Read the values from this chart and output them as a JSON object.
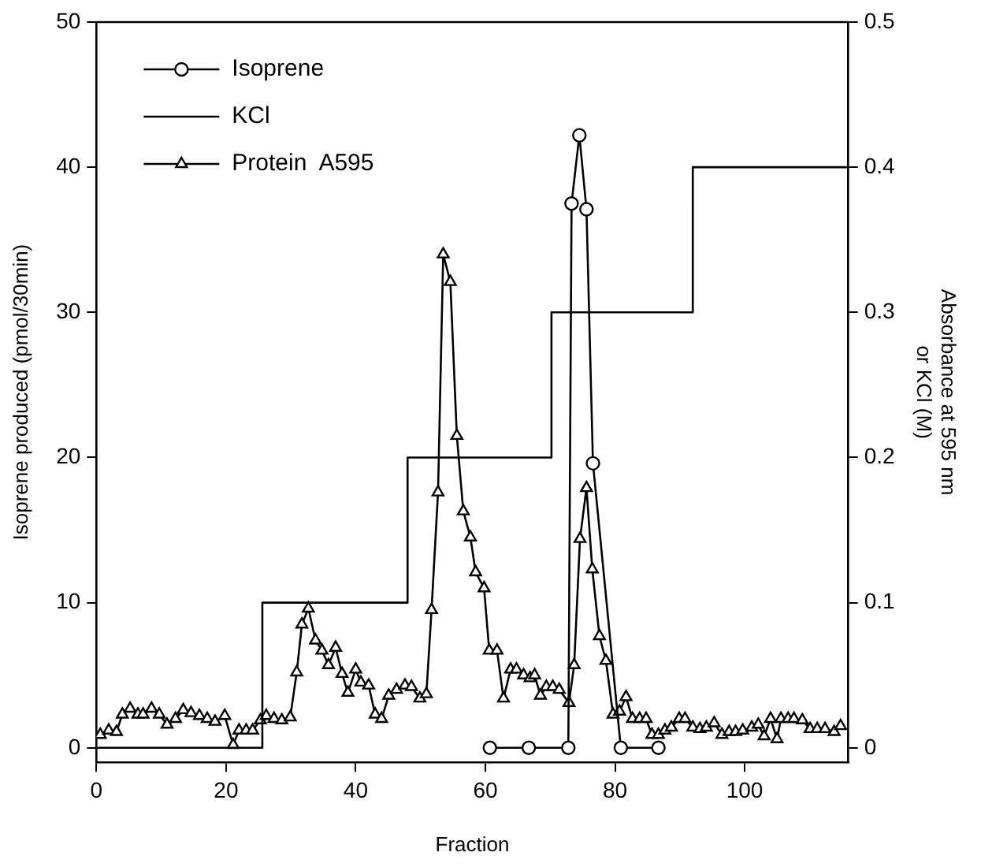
{
  "chart_data": {
    "type": "line",
    "xlabel": "Fraction",
    "ylabel": "Isoprene produced (pmol/30min)",
    "y2label": "Absorbance at 595 nm\nor KCl (M)",
    "xlim": [
      0,
      116
    ],
    "xticks": [
      0,
      20,
      40,
      60,
      80,
      100
    ],
    "ylim": [
      -1,
      50
    ],
    "yticks": [
      0,
      10,
      20,
      30,
      40,
      50
    ],
    "y2lim": [
      -0.01,
      0.5
    ],
    "y2ticks": [
      0,
      0.1,
      0.2,
      0.3,
      0.4,
      0.5
    ],
    "grid": false,
    "legend": "top left",
    "line_style": "solid",
    "series": [
      {
        "name": "Isoprene",
        "type": "line",
        "marker": "circle",
        "axis": "y",
        "color": "#000000",
        "x": [
          60.7,
          66.7,
          72.8,
          73.3,
          74.5,
          75.6,
          76.6,
          80.9,
          86.7
        ],
        "values": [
          0,
          0,
          0,
          37.5,
          42.2,
          37.1,
          19.6,
          0,
          0
        ]
      },
      {
        "name": "KCl",
        "type": "step",
        "marker": "none",
        "axis": "y2",
        "color": "#000000",
        "x": [
          0,
          25.6,
          48,
          70.2,
          92,
          116
        ],
        "values": [
          0,
          0.1,
          0.2,
          0.3,
          0.4,
          0.4
        ]
      },
      {
        "name": "Protein  A595",
        "type": "line",
        "marker": "triangle",
        "axis": "y2",
        "color": "#000000",
        "x": [
          0.6,
          1.9,
          3.1,
          4.0,
          5.2,
          6.4,
          7.2,
          8.5,
          9.7,
          10.9,
          12.2,
          13.4,
          14.6,
          15.9,
          17.1,
          18.3,
          19.8,
          21.1,
          22.0,
          23.1,
          24.1,
          25.3,
          26.2,
          27.4,
          28.6,
          29.9,
          30.9,
          31.7,
          32.7,
          33.8,
          34.8,
          35.8,
          36.9,
          37.9,
          38.8,
          40.0,
          40.8,
          42.0,
          43.0,
          44.0,
          45.1,
          46.3,
          47.6,
          48.6,
          49.9,
          50.9,
          51.7,
          52.7,
          53.5,
          54.6,
          55.6,
          56.6,
          57.7,
          58.5,
          59.8,
          60.6,
          61.8,
          62.8,
          63.9,
          64.8,
          65.9,
          66.9,
          67.6,
          68.5,
          69.4,
          70.4,
          71.4,
          72.9,
          73.7,
          74.6,
          75.6,
          76.5,
          77.6,
          78.6,
          79.7,
          80.7,
          81.7,
          82.7,
          83.8,
          84.8,
          85.7,
          86.7,
          87.7,
          88.7,
          89.9,
          90.8,
          92.0,
          93.1,
          94.1,
          95.3,
          96.5,
          97.6,
          98.6,
          99.7,
          101.1,
          102.1,
          103.0,
          104.0,
          105.0,
          105.6,
          106.7,
          107.6,
          108.9,
          110.1,
          111.2,
          112.4,
          113.8,
          114.8
        ],
        "values": [
          0.009,
          0.012,
          0.011,
          0.023,
          0.027,
          0.023,
          0.023,
          0.027,
          0.023,
          0.016,
          0.02,
          0.026,
          0.024,
          0.022,
          0.02,
          0.018,
          0.022,
          0.002,
          0.012,
          0.012,
          0.012,
          0.019,
          0.022,
          0.02,
          0.019,
          0.021,
          0.052,
          0.085,
          0.096,
          0.074,
          0.067,
          0.057,
          0.069,
          0.051,
          0.038,
          0.054,
          0.045,
          0.043,
          0.023,
          0.02,
          0.036,
          0.04,
          0.043,
          0.042,
          0.034,
          0.037,
          0.095,
          0.176,
          0.34,
          0.321,
          0.215,
          0.163,
          0.145,
          0.121,
          0.11,
          0.067,
          0.067,
          0.034,
          0.054,
          0.054,
          0.05,
          0.048,
          0.05,
          0.036,
          0.042,
          0.042,
          0.04,
          0.031,
          0.057,
          0.144,
          0.179,
          0.123,
          0.077,
          0.06,
          0.023,
          0.025,
          0.035,
          0.02,
          0.02,
          0.02,
          0.009,
          0.009,
          0.012,
          0.014,
          0.02,
          0.02,
          0.014,
          0.013,
          0.014,
          0.017,
          0.009,
          0.011,
          0.011,
          0.012,
          0.014,
          0.016,
          0.008,
          0.02,
          0.006,
          0.02,
          0.02,
          0.02,
          0.019,
          0.013,
          0.013,
          0.013,
          0.011,
          0.015
        ]
      }
    ]
  }
}
